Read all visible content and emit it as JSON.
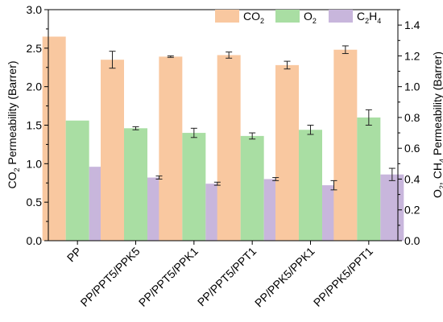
{
  "chart_data": {
    "type": "bar",
    "categories": [
      "PP",
      "PP/PPT5/PPK5",
      "PP/PPT5/PPK1",
      "PP/PPT5/PPT1",
      "PP/PPK5/PPK1",
      "PP/PPK5/PPT1"
    ],
    "series": [
      {
        "name": "CO2",
        "axis": "left",
        "color": "#f9c8a0",
        "values": [
          2.65,
          2.35,
          2.39,
          2.41,
          2.28,
          2.48
        ],
        "errors": [
          0,
          0.11,
          0.01,
          0.04,
          0.05,
          0.05
        ]
      },
      {
        "name": "O2",
        "axis": "right",
        "color": "#a9dea3",
        "values": [
          0.78,
          0.73,
          0.7,
          0.68,
          0.72,
          0.8
        ],
        "errors": [
          0,
          0.01,
          0.03,
          0.02,
          0.03,
          0.05
        ]
      },
      {
        "name": "C2H4",
        "axis": "right",
        "color": "#c8b6dc",
        "values": [
          0.48,
          0.41,
          0.37,
          0.4,
          0.36,
          0.43
        ],
        "errors": [
          0,
          0.01,
          0.01,
          0.01,
          0.03,
          0.04
        ]
      }
    ],
    "ylabel": "CO2 Permeability (Barrer)",
    "y2label": "O2, CH4 Permeability (Barrer)",
    "ylim": [
      0,
      3.0
    ],
    "y2lim": [
      0,
      1.5
    ],
    "yticks": [
      "0.0",
      "0.5",
      "1.0",
      "1.5",
      "2.0",
      "2.5",
      "3.0"
    ],
    "y2ticks": [
      "0.0",
      "0.2",
      "0.4",
      "0.6",
      "0.8",
      "1.0",
      "1.2",
      "1.4"
    ],
    "legend_position": "top-right",
    "grid": false
  }
}
